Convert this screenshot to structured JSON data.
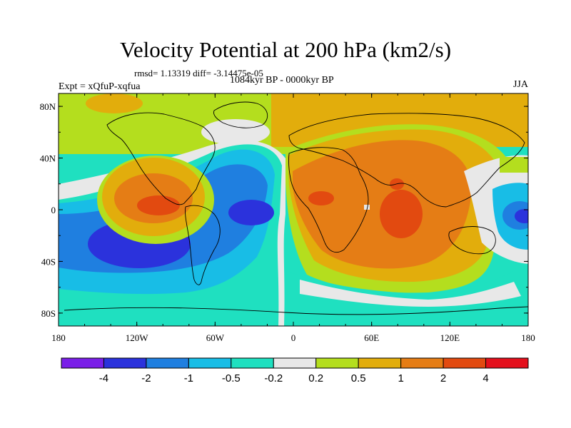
{
  "title": "Velocity Potential at 200 hPa (km2/s)",
  "stats_line": "rmsd= 1.13319 diff= -3.14475e-05",
  "period_line": "1084kyr BP - 0000kyr BP",
  "experiment_line": "Expt = xQfuP-xqfua",
  "season": "JJA",
  "colors": {
    "l1": "#7a1fe8",
    "l2": "#2b32dc",
    "l3": "#1f7fe0",
    "l4": "#18bde6",
    "l5": "#1fe0c0",
    "l6": "#e8e8e8",
    "l7": "#b4de1e",
    "l8": "#e2ad0c",
    "l9": "#e57d15",
    "l10": "#e24a10",
    "l11": "#e4101c"
  },
  "map_axes": {
    "x_ticks": [
      "180",
      "120W",
      "60W",
      "0",
      "60E",
      "120E",
      "180"
    ],
    "y_ticks": [
      "80N",
      "40N",
      "0",
      "40S",
      "80S"
    ]
  },
  "colorbar": {
    "levels": [
      "-4",
      "-2",
      "-1",
      "-0.5",
      "-0.2",
      "0.2",
      "0.5",
      "1",
      "2",
      "4"
    ],
    "colors": [
      "#7a1fe8",
      "#2b32dc",
      "#1f7fe0",
      "#18bde6",
      "#1fe0c0",
      "#e8e8e8",
      "#b4de1e",
      "#e2ad0c",
      "#e57d15",
      "#e24a10",
      "#e4101c"
    ]
  }
}
